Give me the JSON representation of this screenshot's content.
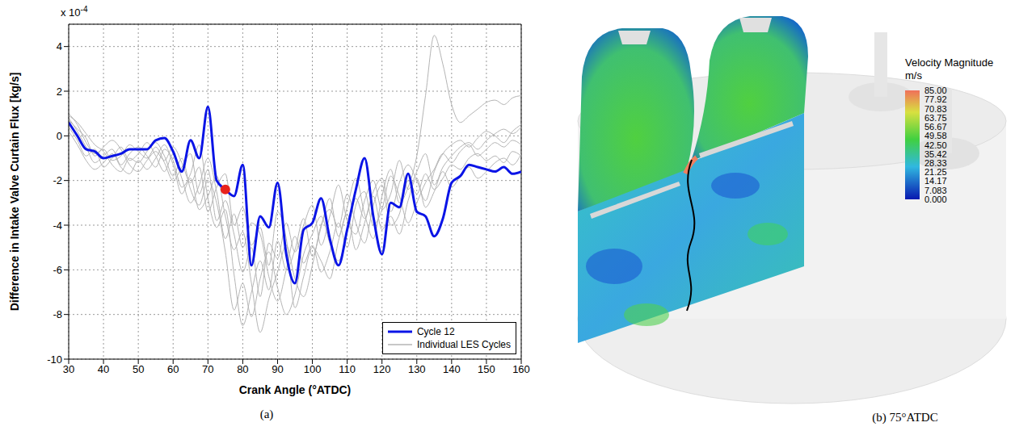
{
  "chart_data": [
    {
      "type": "line",
      "caption": "(a)",
      "x_label": "Crank Angle (°ATDC)",
      "y_label": "Difference in Intake Valve Curtain Flux [kg/s]",
      "y_multiplier_text": "x 10",
      "y_multiplier_exponent": "-4",
      "xlim": [
        30,
        160
      ],
      "xticks": [
        30,
        40,
        50,
        60,
        70,
        80,
        90,
        100,
        110,
        120,
        130,
        140,
        150,
        160
      ],
      "ylim": [
        -10,
        5
      ],
      "yticks": [
        -10,
        -8,
        -6,
        -4,
        -2,
        0,
        2,
        4
      ],
      "grid": true,
      "legend": "lower right",
      "x": [
        30,
        32.5,
        35,
        37.5,
        40,
        42.5,
        45,
        47.5,
        50,
        52.5,
        55,
        57.5,
        60,
        62.5,
        65,
        67.5,
        70,
        72.5,
        75,
        77.5,
        80,
        82.5,
        85,
        87.5,
        90,
        92.5,
        95,
        97.5,
        100,
        102.5,
        105,
        107.5,
        110,
        112.5,
        115,
        117.5,
        120,
        122.5,
        125,
        127.5,
        130,
        132.5,
        135,
        137.5,
        140,
        142.5,
        145,
        147.5,
        150,
        152.5,
        155,
        157.5,
        160
      ],
      "series": [
        {
          "name": "Individual LES Cycles",
          "color": "#b4b4b4",
          "values": [
            1.0,
            0.5,
            -0.3,
            -0.8,
            -0.6,
            -1.1,
            -0.9,
            -0.4,
            -0.7,
            -1.0,
            -0.5,
            -1.2,
            -2.0,
            -1.4,
            -0.8,
            -2.6,
            -1.5,
            -3.8,
            -2.9,
            -4.4,
            -6.1,
            -5.0,
            -7.2,
            -4.8,
            -5.5,
            -3.9,
            -5.2,
            -4.0,
            -3.1,
            -4.9,
            -3.6,
            -2.2,
            -3.8,
            -4.4,
            -2.9,
            -2.0,
            -3.3,
            -2.6,
            -1.1,
            -2.4,
            -1.6,
            -0.8,
            -2.2,
            -1.4,
            -0.9,
            -0.5,
            -0.3,
            -0.6,
            -0.2,
            0.1,
            0.3,
            0.1,
            0.4
          ]
        },
        {
          "name": "Individual LES Cycles",
          "color": "#b4b4b4",
          "values": [
            0.8,
            0.2,
            -0.5,
            -1.2,
            -0.9,
            -0.6,
            -1.3,
            -0.8,
            -0.5,
            -0.9,
            -1.4,
            -0.6,
            -1.1,
            -2.3,
            -1.7,
            -0.4,
            -2.8,
            -4.1,
            -3.3,
            -6.2,
            -8.5,
            -7.0,
            -5.6,
            -6.9,
            -4.7,
            -6.0,
            -5.1,
            -3.7,
            -5.4,
            -4.1,
            -2.8,
            -4.5,
            -3.2,
            -1.9,
            -3.5,
            -4.6,
            -2.7,
            -1.5,
            -3.0,
            -2.3,
            -0.9,
            1.8,
            4.5,
            3.2,
            1.4,
            0.6,
            0.9,
            1.2,
            1.5,
            1.6,
            1.4,
            1.7,
            1.8
          ]
        },
        {
          "name": "Individual LES Cycles",
          "color": "#b4b4b4",
          "values": [
            0.4,
            -0.2,
            -0.9,
            -0.6,
            -1.4,
            -1.0,
            -0.5,
            -1.1,
            -0.8,
            -0.3,
            -0.9,
            -1.6,
            -0.8,
            -1.9,
            -3.0,
            -2.2,
            -1.0,
            -2.5,
            -4.6,
            -3.5,
            -5.0,
            -3.9,
            -4.4,
            -6.3,
            -7.4,
            -6.0,
            -4.5,
            -5.7,
            -4.9,
            -6.1,
            -5.2,
            -3.9,
            -5.0,
            -3.1,
            -2.5,
            -4.0,
            -3.3,
            -1.8,
            -2.7,
            -3.9,
            -3.0,
            -2.1,
            -1.5,
            -0.8,
            -1.2,
            -0.7,
            -0.4,
            -0.9,
            -0.6,
            -0.3,
            -0.5,
            -0.2,
            -0.4
          ]
        },
        {
          "name": "Individual LES Cycles",
          "color": "#b4b4b4",
          "values": [
            0.9,
            0.6,
            0.1,
            -0.4,
            -0.7,
            -1.3,
            -1.6,
            -1.0,
            -1.2,
            -0.7,
            -0.3,
            -0.9,
            -1.8,
            -1.0,
            -2.4,
            -3.1,
            -2.0,
            -3.0,
            -5.2,
            -7.8,
            -6.6,
            -8.1,
            -6.4,
            -5.2,
            -6.8,
            -8.0,
            -7.1,
            -5.3,
            -4.4,
            -3.6,
            -4.8,
            -5.6,
            -4.3,
            -2.8,
            -3.7,
            -2.5,
            -1.9,
            -3.4,
            -2.1,
            -1.3,
            -2.0,
            -2.9,
            -1.6,
            -0.8,
            -0.4,
            -0.2,
            -0.5,
            -0.1,
            0.2,
            0.0,
            -0.3,
            0.2,
            0.5
          ]
        },
        {
          "name": "Individual LES Cycles",
          "color": "#b4b4b4",
          "values": [
            0.2,
            -0.4,
            -1.1,
            -1.5,
            -1.2,
            -0.8,
            -1.4,
            -1.7,
            -1.1,
            -1.5,
            -1.0,
            -0.4,
            -1.3,
            -2.6,
            -1.9,
            -3.3,
            -2.7,
            -1.8,
            -3.6,
            -5.1,
            -4.3,
            -6.6,
            -8.8,
            -7.3,
            -6.1,
            -4.9,
            -6.4,
            -7.2,
            -5.8,
            -4.0,
            -3.3,
            -4.1,
            -2.6,
            -3.9,
            -4.8,
            -3.1,
            -2.2,
            -4.0,
            -3.5,
            -2.0,
            -2.6,
            -1.7,
            -2.4,
            -1.9,
            -1.3,
            -1.5,
            -1.0,
            -0.8,
            -1.1,
            -0.9,
            -1.2,
            -0.7,
            -0.9
          ]
        },
        {
          "name": "Individual LES Cycles",
          "color": "#b4b4b4",
          "values": [
            0.7,
            0.3,
            -0.1,
            -0.9,
            -0.5,
            -0.2,
            -0.6,
            -1.3,
            -1.6,
            -1.1,
            -0.7,
            -1.1,
            -0.5,
            -1.2,
            -2.1,
            -1.4,
            -3.4,
            -2.3,
            -1.7,
            -4.0,
            -3.2,
            -4.9,
            -4.1,
            -5.8,
            -3.4,
            -4.6,
            -7.7,
            -6.3,
            -5.0,
            -5.6,
            -6.4,
            -4.7,
            -3.5,
            -5.1,
            -3.9,
            -2.7,
            -4.2,
            -3.6,
            -4.4,
            -2.9,
            -1.9,
            -3.2,
            -2.5,
            -1.6,
            -2.3,
            -1.8,
            -1.4,
            -1.9,
            -1.6,
            -1.2,
            -1.0,
            -1.3,
            -0.8
          ]
        },
        {
          "name": "Cycle 12",
          "color": "#0a14e6",
          "values": [
            0.6,
            0.0,
            -0.6,
            -0.7,
            -1.0,
            -0.9,
            -0.8,
            -0.6,
            -0.6,
            -0.6,
            -0.2,
            -0.1,
            -0.7,
            -1.6,
            -0.2,
            -1.0,
            1.3,
            -2.0,
            -2.4,
            -2.7,
            -1.3,
            -5.8,
            -3.6,
            -4.1,
            -2.1,
            -5.3,
            -6.6,
            -4.2,
            -3.9,
            -2.8,
            -4.6,
            -5.8,
            -4.2,
            -2.4,
            -1.0,
            -3.6,
            -5.3,
            -3.0,
            -3.2,
            -1.7,
            -3.4,
            -3.6,
            -4.5,
            -3.7,
            -2.1,
            -1.8,
            -1.3,
            -1.4,
            -1.5,
            -1.6,
            -1.4,
            -1.7,
            -1.6
          ]
        }
      ],
      "marker_point": {
        "x": 75,
        "y": -2.4,
        "color": "#e8221c"
      }
    },
    {
      "type": "contour",
      "caption": "(b) 75°ATDC",
      "title": "Velocity Magnitude",
      "unit": "m/s",
      "colorbar_range": [
        0,
        85
      ],
      "colorbar_ticks": [
        {
          "value": 85,
          "label": "85.00"
        },
        {
          "value": 77.92,
          "label": "77.92"
        },
        {
          "value": 70.83,
          "label": "70.83"
        },
        {
          "value": 63.75,
          "label": "63.75"
        },
        {
          "value": 56.67,
          "label": "56.67"
        },
        {
          "value": 49.58,
          "label": "49.58"
        },
        {
          "value": 42.5,
          "label": "42.50"
        },
        {
          "value": 35.42,
          "label": "35.42"
        },
        {
          "value": 28.33,
          "label": "28.33"
        },
        {
          "value": 21.25,
          "label": "21.25"
        },
        {
          "value": 14.17,
          "label": "14.17"
        },
        {
          "value": 7.083,
          "label": "7.083"
        },
        {
          "value": 0,
          "label": "0.000"
        }
      ]
    }
  ]
}
